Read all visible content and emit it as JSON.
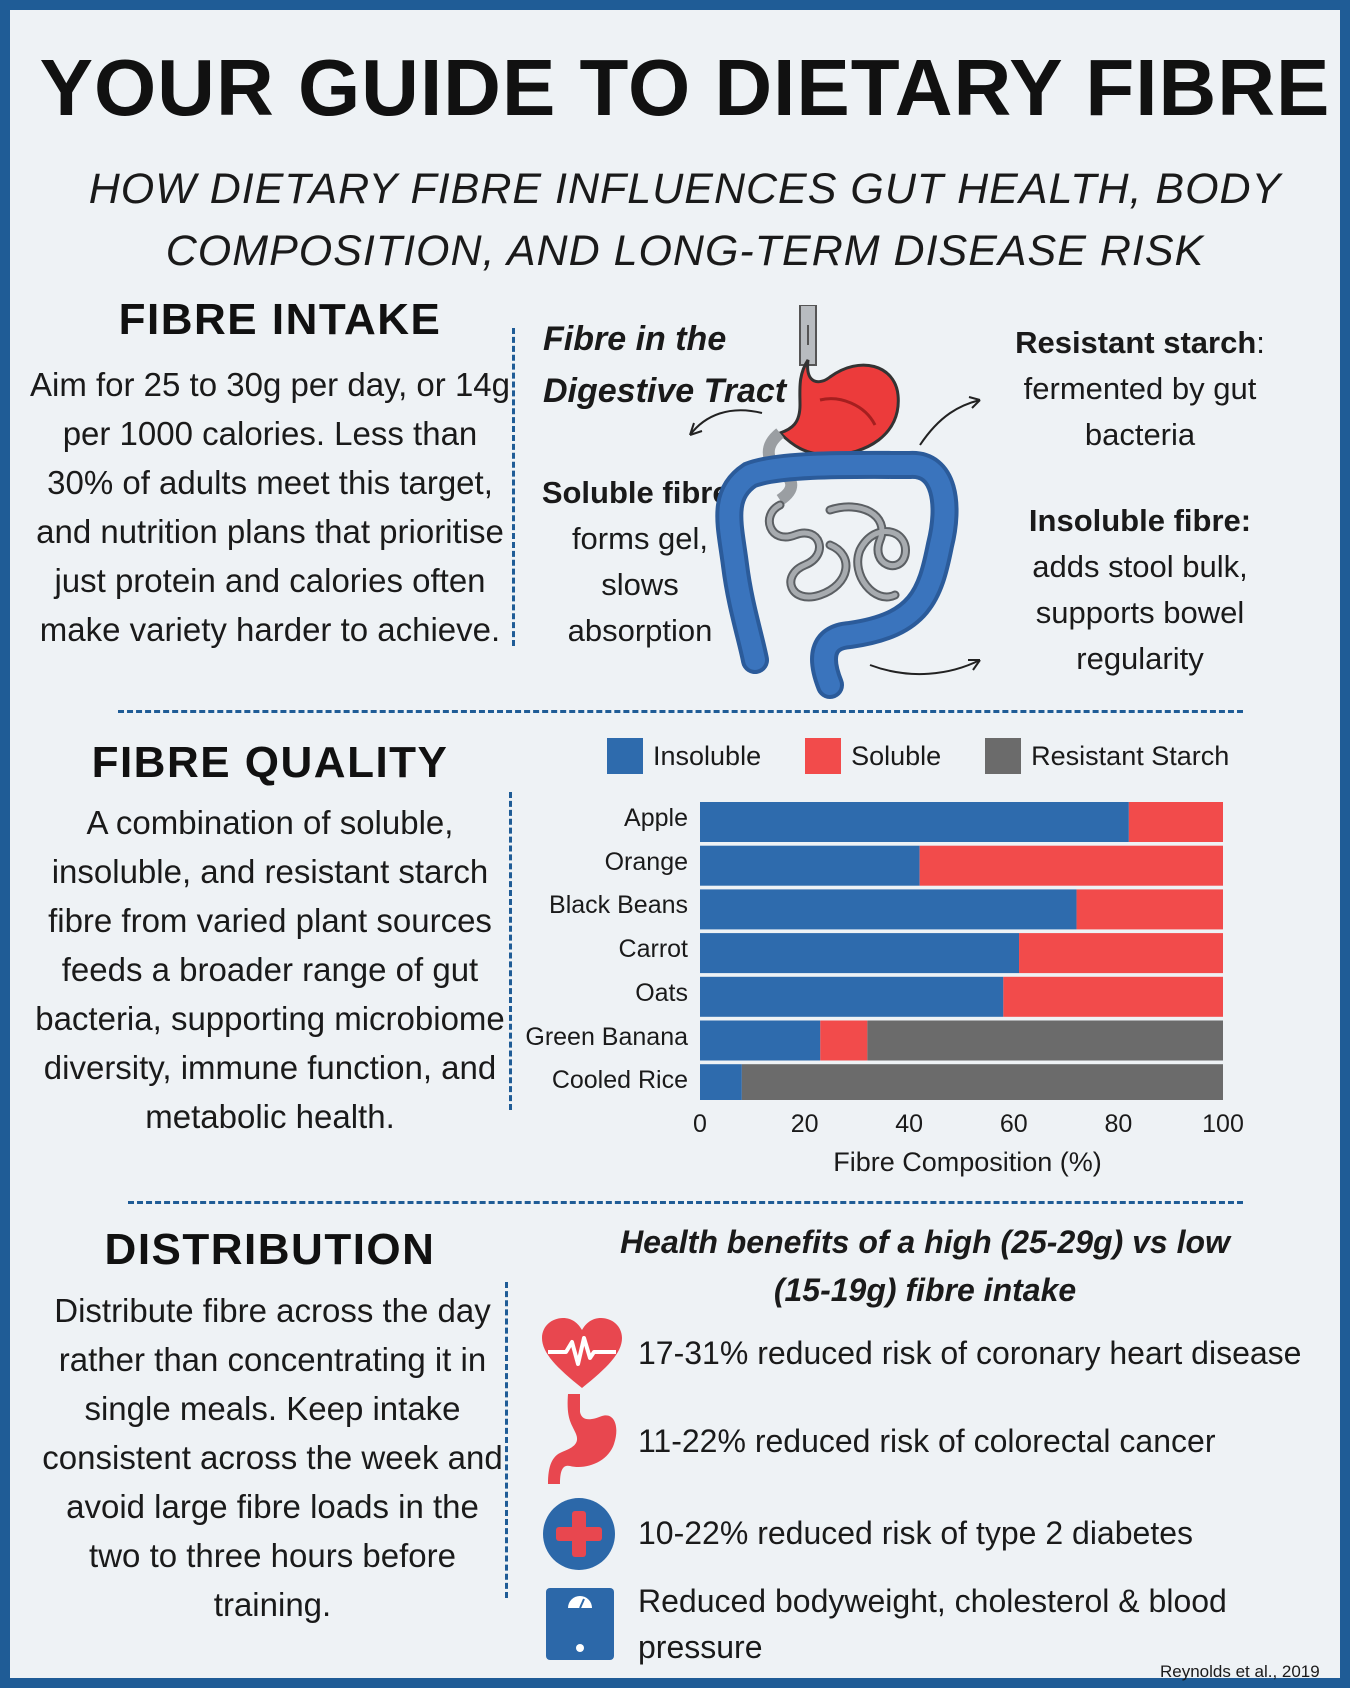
{
  "title": "YOUR GUIDE TO DIETARY FIBRE",
  "subtitle_line1": "HOW DIETARY FIBRE INFLUENCES GUT HEALTH, BODY",
  "subtitle_line2": "COMPOSITION, AND LONG-TERM DISEASE RISK",
  "intake": {
    "heading": "FIBRE INTAKE",
    "text": "Aim for 25 to 30g per day, or 14g per 1000 calories. Less than 30% of adults meet this target, and nutrition plans that prioritise just protein and calories often make variety harder to achieve."
  },
  "tract": {
    "title_line1": "Fibre in the",
    "title_line2": "Digestive Tract",
    "resistant_label": "Resistant starch",
    "resistant_colon": ":",
    "resistant_desc_line1": "fermented by gut",
    "resistant_desc_line2": "bacteria",
    "soluble_label": "Soluble fibre",
    "soluble_colon": ":",
    "soluble_desc_line1": "forms gel,",
    "soluble_desc_line2": "slows",
    "soluble_desc_line3": "absorption",
    "insoluble_label": "Insoluble fibre:",
    "insoluble_desc_line1": "adds stool bulk,",
    "insoluble_desc_line2": "supports bowel",
    "insoluble_desc_line3": "regularity"
  },
  "quality": {
    "heading": "FIBRE QUALITY",
    "text": "A combination of soluble, insoluble, and resistant starch fibre from varied plant sources feeds a broader range of gut bacteria, supporting microbiome diversity, immune function, and metabolic health."
  },
  "distribution": {
    "heading": "DISTRIBUTION",
    "text": "Distribute fibre across the day rather than concentrating it in single meals. Keep intake consistent across the week and avoid large fibre loads in the two to three hours before training."
  },
  "benefits": {
    "title_line1": "Health benefits of a high (25-29g) vs low",
    "title_line2": "(15-19g) fibre intake",
    "items": [
      {
        "text": "17-31% reduced risk of coronary heart disease",
        "icon": "heart-pulse-icon"
      },
      {
        "text": "11-22% reduced risk of colorectal cancer",
        "icon": "stomach-icon"
      },
      {
        "text": "10-22% reduced risk of type 2 diabetes",
        "icon": "medical-cross-icon"
      },
      {
        "text_line1": "Reduced bodyweight, cholesterol & blood",
        "text_line2": "pressure",
        "icon": "scale-icon"
      }
    ],
    "citation": "Reynolds et al., 2019"
  },
  "colors": {
    "frame": "#1f5c96",
    "insoluble": "#2e6bad",
    "soluble": "#f24b4b",
    "resistant": "#6b6b6b"
  },
  "chart_data": {
    "type": "bar",
    "orientation": "horizontal",
    "stacked": true,
    "categories": [
      "Apple",
      "Orange",
      "Black Beans",
      "Carrot",
      "Oats",
      "Green Banana",
      "Cooled Rice"
    ],
    "series": [
      {
        "name": "Insoluble",
        "values": [
          82,
          42,
          72,
          61,
          58,
          23,
          8
        ]
      },
      {
        "name": "Soluble",
        "values": [
          18,
          58,
          28,
          39,
          42,
          9,
          0
        ]
      },
      {
        "name": "Resistant Starch",
        "values": [
          0,
          0,
          0,
          0,
          0,
          68,
          92
        ]
      }
    ],
    "xlabel": "Fibre Composition (%)",
    "xlim": [
      0,
      100
    ],
    "xticks": [
      "0",
      "20",
      "40",
      "60",
      "80",
      "100"
    ],
    "legend_position": "top",
    "grid": false
  }
}
